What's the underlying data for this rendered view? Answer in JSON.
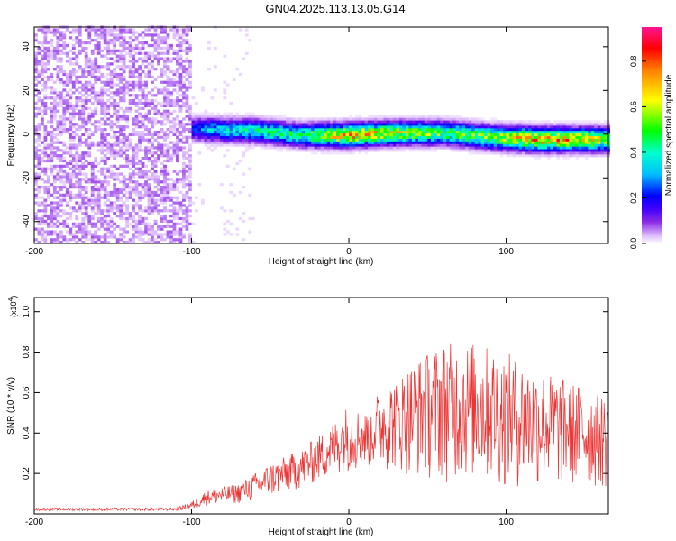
{
  "figure_title": "GN04.2025.113.13.05.G14",
  "chart_data": [
    {
      "type": "heatmap",
      "xlabel": "Height of straight line (km)",
      "ylabel": "Frequency (Hz)",
      "xlim": [
        -200,
        165
      ],
      "ylim": [
        -50,
        49
      ],
      "x_ticks": [
        -200,
        -100,
        0,
        100
      ],
      "y_ticks": [
        -40,
        -20,
        0,
        20,
        40
      ],
      "colorbar": {
        "label": "Normalized spectral amplitude",
        "range": [
          0,
          0.95
        ],
        "ticks": [
          0.0,
          0.2,
          0.4,
          0.6,
          0.8
        ],
        "colors": [
          "#ffffff",
          "#d9b3ff",
          "#8a2be2",
          "#3f00ff",
          "#0000ff",
          "#00bfff",
          "#00ffcc",
          "#00ff00",
          "#ffff00",
          "#ff8000",
          "#ff0000",
          "#ff1493"
        ]
      },
      "noise_region": {
        "x": [
          -200,
          -100
        ],
        "amplitude": [
          0.02,
          0.08
        ]
      },
      "ridge": {
        "x": [
          -103,
          -90,
          -60,
          -30,
          0,
          30,
          60,
          90,
          120,
          150,
          165
        ],
        "frequency": [
          2,
          1.5,
          1,
          -1,
          -1,
          0,
          0,
          -2,
          -3,
          -3,
          -3
        ],
        "peak_amplitude": [
          0.25,
          0.4,
          0.5,
          0.55,
          0.9,
          0.75,
          0.6,
          0.7,
          0.9,
          0.85,
          0.7
        ]
      }
    },
    {
      "type": "line",
      "xlabel": "Height of straight line (km)",
      "ylabel": "SNR (10 * v/v)",
      "y_multiplier": "(x10",
      "y_multiplier_exp": "4",
      "y_multiplier_close": ")",
      "xlim": [
        -200,
        165
      ],
      "ylim": [
        0,
        1.07
      ],
      "x_ticks": [
        -200,
        -100,
        0,
        100
      ],
      "y_ticks": [
        0.2,
        0.4,
        0.6,
        0.8,
        1.0
      ],
      "series": [
        {
          "color": "#ee3333",
          "x": [
            -200,
            -150,
            -110,
            -100,
            -90,
            -70,
            -50,
            -30,
            -10,
            0,
            10,
            20,
            30,
            40,
            60,
            80,
            100,
            120,
            140,
            160,
            165
          ],
          "baseline": [
            0.015,
            0.015,
            0.015,
            0.02,
            0.04,
            0.05,
            0.08,
            0.12,
            0.18,
            0.2,
            0.22,
            0.22,
            0.2,
            0.18,
            0.15,
            0.15,
            0.12,
            0.12,
            0.12,
            0.12,
            0.1
          ],
          "peak": [
            0.03,
            0.03,
            0.03,
            0.06,
            0.12,
            0.15,
            0.25,
            0.32,
            0.45,
            0.55,
            0.5,
            0.62,
            0.68,
            0.75,
            0.85,
            0.85,
            0.8,
            0.72,
            0.66,
            0.6,
            0.57
          ]
        }
      ]
    }
  ]
}
